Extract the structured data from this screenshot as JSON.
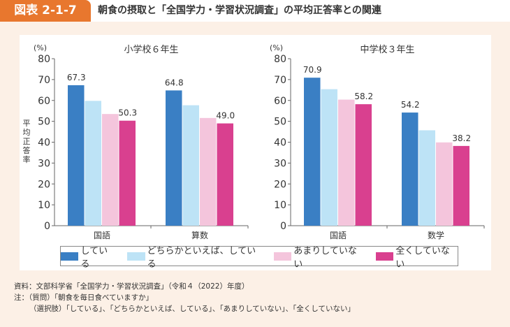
{
  "header": {
    "figure_label": "図表 2-1-7",
    "title": "朝食の摂取と「全国学力・学習状況調査」の平均正答率との関連"
  },
  "chart_data": [
    {
      "type": "bar",
      "title": "小学校６年生",
      "ylabel": "平均正答率",
      "unit": "(%)",
      "ylim": [
        0,
        80
      ],
      "yticks": [
        0,
        10,
        20,
        30,
        40,
        50,
        60,
        70,
        80
      ],
      "categories": [
        "国語",
        "算数"
      ],
      "series": [
        {
          "name": "している",
          "color": "#3a7fc4",
          "values": [
            67.3,
            64.8
          ],
          "labels": [
            "67.3",
            "64.8"
          ]
        },
        {
          "name": "どちらかといえば、している",
          "color": "#bde3f6",
          "values": [
            59.8,
            57.7
          ],
          "labels": [
            null,
            null
          ]
        },
        {
          "name": "あまりしていない",
          "color": "#f4c5dc",
          "values": [
            53.5,
            51.6
          ],
          "labels": [
            null,
            null
          ]
        },
        {
          "name": "全くしていない",
          "color": "#d9408f",
          "values": [
            50.3,
            49.0
          ],
          "labels": [
            "50.3",
            "49.0"
          ]
        }
      ]
    },
    {
      "type": "bar",
      "title": "中学校３年生",
      "ylabel": "",
      "unit": "(%)",
      "ylim": [
        0,
        80
      ],
      "yticks": [
        0,
        10,
        20,
        30,
        40,
        50,
        60,
        70,
        80
      ],
      "categories": [
        "国語",
        "数学"
      ],
      "series": [
        {
          "name": "している",
          "color": "#3a7fc4",
          "values": [
            70.9,
            54.2
          ],
          "labels": [
            "70.9",
            "54.2"
          ]
        },
        {
          "name": "どちらかといえば、している",
          "color": "#bde3f6",
          "values": [
            65.4,
            45.7
          ],
          "labels": [
            null,
            null
          ]
        },
        {
          "name": "あまりしていない",
          "color": "#f4c5dc",
          "values": [
            60.4,
            39.9
          ],
          "labels": [
            null,
            null
          ]
        },
        {
          "name": "全くしていない",
          "color": "#d9408f",
          "values": [
            58.2,
            38.2
          ],
          "labels": [
            "58.2",
            "38.2"
          ]
        }
      ]
    }
  ],
  "legend": [
    {
      "label": "している",
      "color": "#3a7fc4"
    },
    {
      "label": "どちらかといえば、している",
      "color": "#bde3f6"
    },
    {
      "label": "あまりしていない",
      "color": "#f4c5dc"
    },
    {
      "label": "全くしていない",
      "color": "#d9408f"
    }
  ],
  "notes": {
    "source": "資料：文部科学省「全国学力・学習状況調査」（令和４（2022）年度）",
    "note1": "注：（質問）「朝食を毎日食べていますか」",
    "note2": "（選択肢）「している」、「どちらかといえば、している」、「あまりしていない」、「全くしていない」"
  }
}
